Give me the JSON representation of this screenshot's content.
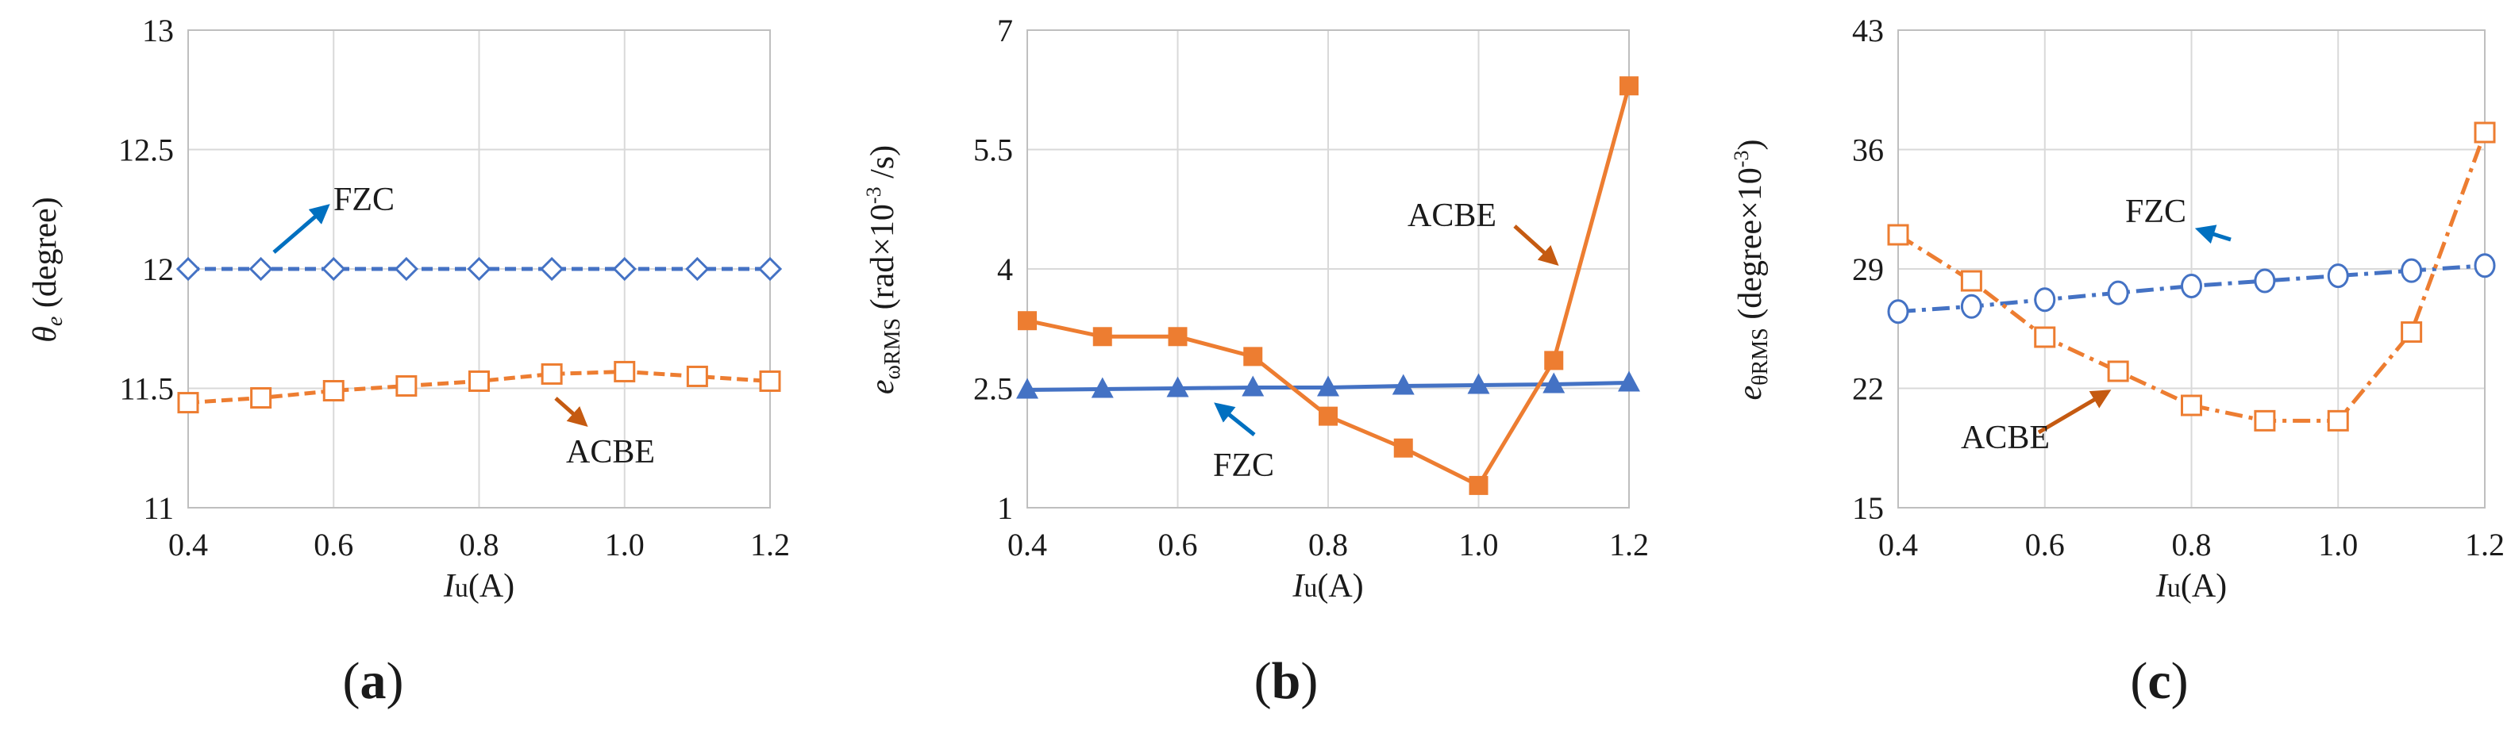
{
  "colors": {
    "fzc": "#4472C4",
    "acbe": "#ED7D31",
    "arrow_fzc": "#0070C0",
    "arrow_acbe": "#C55A11"
  },
  "chart_data": [
    {
      "id": "a",
      "type": "line",
      "panel_label": {
        "open": "(",
        "letter": "a",
        "close": ")"
      },
      "xlabel": {
        "italic": "I",
        "sub": "u",
        "unit": "(A)"
      },
      "ylabel": {
        "symbol": "θ",
        "sub": "e",
        "rest": "(degree)"
      },
      "xlim": [
        0.4,
        1.2
      ],
      "ylim": [
        11,
        13
      ],
      "xticks": [
        0.4,
        0.6,
        0.8,
        1.0,
        1.2
      ],
      "xtick_labels": [
        "0.4",
        "0.6",
        "0.8",
        "1.0",
        "1.2"
      ],
      "yticks": [
        11,
        11.5,
        12,
        12.5,
        13
      ],
      "ytick_labels": [
        "11",
        "11.5",
        "12",
        "12.5",
        "13"
      ],
      "x": [
        0.4,
        0.5,
        0.6,
        0.7,
        0.8,
        0.9,
        1.0,
        1.1,
        1.2
      ],
      "series": [
        {
          "name": "FZC",
          "values": [
            12.0,
            12.0,
            12.0,
            12.0,
            12.0,
            12.0,
            12.0,
            12.0,
            12.0
          ],
          "marker": "diamond-open",
          "line": "dashed",
          "color": "#4472C4"
        },
        {
          "name": "ACBE",
          "values": [
            11.44,
            11.46,
            11.49,
            11.51,
            11.53,
            11.56,
            11.57,
            11.55,
            11.53
          ],
          "marker": "square-open",
          "line": "dashed",
          "color": "#ED7D31"
        }
      ],
      "annotations": [
        {
          "text": "FZC",
          "series": "FZC"
        },
        {
          "text": "ACBE",
          "series": "ACBE"
        }
      ]
    },
    {
      "id": "b",
      "type": "line",
      "panel_label": {
        "open": "(",
        "letter": "b",
        "close": ")"
      },
      "xlabel": {
        "italic": "I",
        "sub": "u",
        "unit": "(A)"
      },
      "ylabel": {
        "symbol": "e",
        "sub": "ωRMS",
        "rest": "(rad×10",
        "exp": "-3",
        "rest2": " /s)"
      },
      "xlim": [
        0.4,
        1.2
      ],
      "ylim": [
        1,
        7
      ],
      "xticks": [
        0.4,
        0.6,
        0.8,
        1.0,
        1.2
      ],
      "xtick_labels": [
        "0.4",
        "0.6",
        "0.8",
        "1.0",
        "1.2"
      ],
      "yticks": [
        1,
        2.5,
        4,
        5.5,
        7
      ],
      "ytick_labels": [
        "1",
        "2.5",
        "4",
        "5.5",
        "7"
      ],
      "x": [
        0.4,
        0.5,
        0.6,
        0.7,
        0.8,
        0.9,
        1.0,
        1.1,
        1.2
      ],
      "series": [
        {
          "name": "FZC",
          "values": [
            2.48,
            2.49,
            2.5,
            2.51,
            2.51,
            2.53,
            2.54,
            2.55,
            2.57
          ],
          "marker": "triangle-filled",
          "line": "solid",
          "color": "#4472C4"
        },
        {
          "name": "ACBE",
          "values": [
            3.35,
            3.15,
            3.15,
            2.9,
            2.15,
            1.75,
            1.28,
            2.85,
            6.3
          ],
          "marker": "square-filled",
          "line": "solid",
          "color": "#ED7D31"
        }
      ],
      "annotations": [
        {
          "text": "FZC",
          "series": "FZC"
        },
        {
          "text": "ACBE",
          "series": "ACBE"
        }
      ]
    },
    {
      "id": "c",
      "type": "line",
      "panel_label": {
        "open": "(",
        "letter": "c",
        "close": ")"
      },
      "xlabel": {
        "italic": "I",
        "sub": "u",
        "unit": "(A)"
      },
      "ylabel": {
        "symbol": "e",
        "sub": "θRMS",
        "rest": "(degree×10",
        "exp": "-3",
        "rest2": ")"
      },
      "xlim": [
        0.4,
        1.2
      ],
      "ylim": [
        15,
        43
      ],
      "xticks": [
        0.4,
        0.6,
        0.8,
        1.0,
        1.2
      ],
      "xtick_labels": [
        "0.4",
        "0.6",
        "0.8",
        "1.0",
        "1.2"
      ],
      "yticks": [
        15,
        22,
        29,
        36,
        43
      ],
      "ytick_labels": [
        "15",
        "22",
        "29",
        "36",
        "43"
      ],
      "x": [
        0.4,
        0.5,
        0.6,
        0.7,
        0.8,
        0.9,
        1.0,
        1.1,
        1.2
      ],
      "series": [
        {
          "name": "FZC",
          "values": [
            26.5,
            26.8,
            27.2,
            27.6,
            28.0,
            28.3,
            28.6,
            28.9,
            29.2
          ],
          "marker": "circle-open",
          "line": "dashdot",
          "color": "#4472C4"
        },
        {
          "name": "ACBE",
          "values": [
            31.0,
            28.3,
            25.0,
            23.0,
            21.0,
            20.1,
            20.1,
            25.3,
            37.0
          ],
          "marker": "square-open",
          "line": "dashdot",
          "color": "#ED7D31"
        }
      ],
      "annotations": [
        {
          "text": "FZC",
          "series": "FZC"
        },
        {
          "text": "ACBE",
          "series": "ACBE"
        }
      ]
    }
  ]
}
